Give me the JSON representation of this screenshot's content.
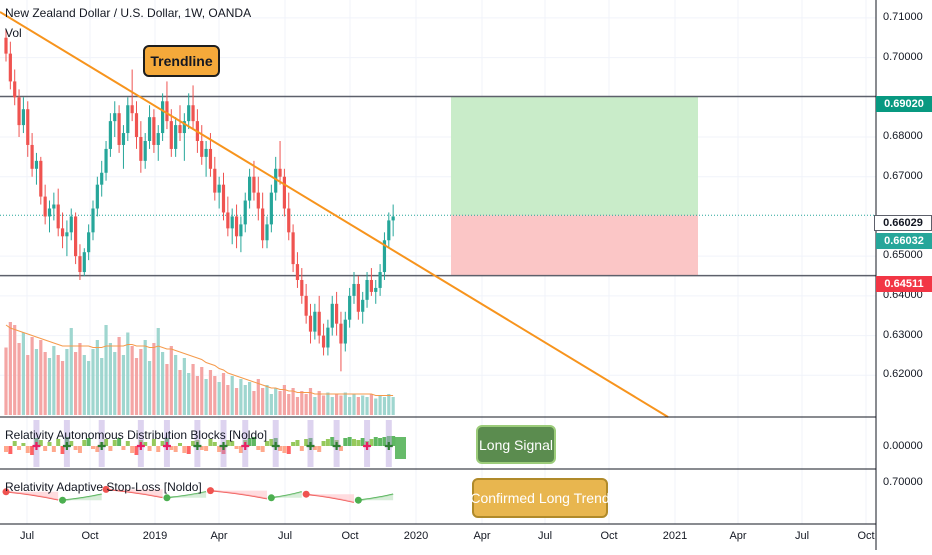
{
  "header": {
    "title": "New Zealand Dollar / U.S. Dollar, 1W, OANDA",
    "volume_label": "Vol"
  },
  "annotations": {
    "trendline_label": "Trendline",
    "long_signal_label": "Long Signal",
    "confirmed_trend_label": "Confirmed Long Trend"
  },
  "indicators": {
    "distribution_blocks": "Relativity Autonomous Distribution Blocks [Noldo]",
    "stop_loss": "Relativity Adaptive Stop-Loss [Noldo]",
    "pane1_tick": "0.00000",
    "pane2_tick": "0.70000"
  },
  "price_axis": {
    "ticks": [
      "0.71000",
      "0.70000",
      "0.68000",
      "0.67000",
      "0.65000",
      "0.64000",
      "0.63000",
      "0.62000"
    ],
    "badges": {
      "target": "0.69020",
      "last": "0.66029",
      "close": "0.66032",
      "stop": "0.64511"
    }
  },
  "time_axis": {
    "ticks": [
      "Jul",
      "Oct",
      "2019",
      "Apr",
      "Jul",
      "Oct",
      "2020",
      "Apr",
      "Jul",
      "Oct",
      "2021",
      "Apr",
      "Jul",
      "Oct"
    ]
  },
  "colors": {
    "up": "#26a69a",
    "down": "#ef5350",
    "trendline": "#f7941d",
    "profit_zone": "#c9ecc9",
    "loss_zone": "#fbc6c6",
    "target_badge": "#089981",
    "stop_badge": "#f23645",
    "long_signal_bg": "#5b8c4f",
    "confirmed_bg": "#e8b64f"
  },
  "chart_data": {
    "type": "candlestick",
    "symbol": "NZDUSD",
    "interval": "1W",
    "ylim": [
      0.6095,
      0.7145
    ],
    "levels": {
      "target": 0.6902,
      "entry": 0.66029,
      "stop": 0.64511
    },
    "trendline": {
      "start": {
        "date": "2018-06",
        "price": 0.71
      },
      "end": {
        "date": "2021-01",
        "price": 0.61
      }
    },
    "candles": [
      [
        0.705,
        0.707,
        0.699,
        0.701
      ],
      [
        0.701,
        0.704,
        0.692,
        0.694
      ],
      [
        0.694,
        0.697,
        0.688,
        0.69
      ],
      [
        0.69,
        0.692,
        0.68,
        0.683
      ],
      [
        0.683,
        0.69,
        0.681,
        0.687
      ],
      [
        0.687,
        0.689,
        0.675,
        0.678
      ],
      [
        0.678,
        0.681,
        0.67,
        0.672
      ],
      [
        0.672,
        0.676,
        0.668,
        0.674
      ],
      [
        0.674,
        0.675,
        0.663,
        0.665
      ],
      [
        0.665,
        0.668,
        0.658,
        0.66
      ],
      [
        0.66,
        0.664,
        0.656,
        0.662
      ],
      [
        0.662,
        0.666,
        0.659,
        0.663
      ],
      [
        0.663,
        0.667,
        0.655,
        0.657
      ],
      [
        0.657,
        0.661,
        0.652,
        0.655
      ],
      [
        0.655,
        0.659,
        0.65,
        0.656
      ],
      [
        0.656,
        0.662,
        0.654,
        0.66
      ],
      [
        0.66,
        0.661,
        0.648,
        0.65
      ],
      [
        0.65,
        0.653,
        0.644,
        0.646
      ],
      [
        0.646,
        0.652,
        0.645,
        0.651
      ],
      [
        0.651,
        0.658,
        0.649,
        0.656
      ],
      [
        0.656,
        0.664,
        0.654,
        0.662
      ],
      [
        0.662,
        0.67,
        0.66,
        0.668
      ],
      [
        0.668,
        0.674,
        0.665,
        0.671
      ],
      [
        0.671,
        0.679,
        0.669,
        0.677
      ],
      [
        0.677,
        0.686,
        0.675,
        0.684
      ],
      [
        0.684,
        0.689,
        0.68,
        0.686
      ],
      [
        0.686,
        0.688,
        0.676,
        0.678
      ],
      [
        0.678,
        0.683,
        0.672,
        0.681
      ],
      [
        0.681,
        0.69,
        0.679,
        0.688
      ],
      [
        0.688,
        0.697,
        0.684,
        0.686
      ],
      [
        0.686,
        0.689,
        0.677,
        0.68
      ],
      [
        0.68,
        0.684,
        0.671,
        0.674
      ],
      [
        0.674,
        0.681,
        0.672,
        0.679
      ],
      [
        0.679,
        0.688,
        0.677,
        0.685
      ],
      [
        0.685,
        0.687,
        0.676,
        0.678
      ],
      [
        0.678,
        0.683,
        0.674,
        0.681
      ],
      [
        0.681,
        0.691,
        0.679,
        0.689
      ],
      [
        0.689,
        0.694,
        0.682,
        0.684
      ],
      [
        0.684,
        0.687,
        0.675,
        0.677
      ],
      [
        0.677,
        0.685,
        0.675,
        0.683
      ],
      [
        0.683,
        0.688,
        0.679,
        0.681
      ],
      [
        0.681,
        0.686,
        0.674,
        0.684
      ],
      [
        0.684,
        0.691,
        0.682,
        0.688
      ],
      [
        0.688,
        0.693,
        0.682,
        0.684
      ],
      [
        0.684,
        0.687,
        0.676,
        0.679
      ],
      [
        0.679,
        0.683,
        0.673,
        0.675
      ],
      [
        0.675,
        0.679,
        0.67,
        0.677
      ],
      [
        0.677,
        0.681,
        0.67,
        0.672
      ],
      [
        0.672,
        0.675,
        0.664,
        0.666
      ],
      [
        0.666,
        0.67,
        0.662,
        0.668
      ],
      [
        0.668,
        0.671,
        0.659,
        0.661
      ],
      [
        0.661,
        0.665,
        0.655,
        0.657
      ],
      [
        0.657,
        0.662,
        0.653,
        0.66
      ],
      [
        0.66,
        0.663,
        0.652,
        0.655
      ],
      [
        0.655,
        0.66,
        0.651,
        0.658
      ],
      [
        0.658,
        0.666,
        0.656,
        0.664
      ],
      [
        0.664,
        0.672,
        0.662,
        0.67
      ],
      [
        0.67,
        0.674,
        0.664,
        0.666
      ],
      [
        0.666,
        0.67,
        0.659,
        0.662
      ],
      [
        0.662,
        0.666,
        0.652,
        0.654
      ],
      [
        0.654,
        0.66,
        0.652,
        0.658
      ],
      [
        0.658,
        0.668,
        0.656,
        0.666
      ],
      [
        0.666,
        0.675,
        0.664,
        0.672
      ],
      [
        0.672,
        0.679,
        0.668,
        0.67
      ],
      [
        0.67,
        0.672,
        0.66,
        0.662
      ],
      [
        0.662,
        0.666,
        0.654,
        0.656
      ],
      [
        0.656,
        0.658,
        0.646,
        0.648
      ],
      [
        0.648,
        0.651,
        0.642,
        0.644
      ],
      [
        0.644,
        0.647,
        0.638,
        0.64
      ],
      [
        0.64,
        0.643,
        0.633,
        0.635
      ],
      [
        0.635,
        0.638,
        0.628,
        0.631
      ],
      [
        0.631,
        0.638,
        0.629,
        0.636
      ],
      [
        0.636,
        0.64,
        0.628,
        0.63
      ],
      [
        0.63,
        0.633,
        0.625,
        0.627
      ],
      [
        0.627,
        0.634,
        0.625,
        0.632
      ],
      [
        0.632,
        0.64,
        0.63,
        0.638
      ],
      [
        0.638,
        0.641,
        0.63,
        0.633
      ],
      [
        0.633,
        0.636,
        0.621,
        0.628
      ],
      [
        0.628,
        0.636,
        0.626,
        0.634
      ],
      [
        0.634,
        0.642,
        0.632,
        0.64
      ],
      [
        0.64,
        0.646,
        0.638,
        0.643
      ],
      [
        0.643,
        0.645,
        0.634,
        0.636
      ],
      [
        0.636,
        0.641,
        0.633,
        0.639
      ],
      [
        0.639,
        0.646,
        0.637,
        0.644
      ],
      [
        0.644,
        0.647,
        0.64,
        0.641
      ],
      [
        0.641,
        0.644,
        0.638,
        0.642
      ],
      [
        0.642,
        0.648,
        0.64,
        0.646
      ],
      [
        0.646,
        0.656,
        0.644,
        0.654
      ],
      [
        0.654,
        0.661,
        0.652,
        0.659
      ],
      [
        0.659,
        0.663,
        0.655,
        0.66
      ]
    ],
    "volume": [
      45,
      62,
      60,
      48,
      55,
      40,
      52,
      44,
      50,
      42,
      38,
      46,
      40,
      36,
      44,
      58,
      42,
      48,
      40,
      36,
      44,
      50,
      38,
      60,
      48,
      42,
      52,
      40,
      55,
      46,
      38,
      44,
      50,
      36,
      48,
      58,
      42,
      34,
      46,
      40,
      30,
      38,
      28,
      34,
      26,
      32,
      24,
      30,
      26,
      22,
      28,
      20,
      26,
      18,
      24,
      20,
      22,
      16,
      24,
      18,
      20,
      14,
      18,
      16,
      20,
      14,
      18,
      12,
      16,
      14,
      18,
      12,
      16,
      13,
      15,
      12,
      14,
      13,
      15,
      12,
      14,
      12,
      13,
      12,
      14,
      11,
      13,
      12,
      14,
      12
    ],
    "volume_ma": [
      60,
      58,
      57,
      56,
      55,
      54,
      53,
      52,
      51,
      50,
      49,
      48,
      47,
      46,
      46,
      46,
      46,
      46,
      46,
      46,
      45,
      45,
      45,
      46,
      46,
      46,
      46,
      46,
      47,
      47,
      46,
      46,
      46,
      45,
      45,
      46,
      45,
      44,
      44,
      43,
      42,
      41,
      40,
      39,
      38,
      37,
      35,
      34,
      33,
      31,
      30,
      28,
      27,
      26,
      25,
      24,
      23,
      22,
      21,
      20,
      19,
      18,
      18,
      17,
      17,
      16,
      16,
      15,
      15,
      15,
      15,
      14,
      14,
      14,
      14,
      14,
      14,
      14,
      14,
      14,
      14,
      14,
      14,
      14,
      14,
      13,
      13,
      13,
      13,
      13
    ],
    "distribution_blocks": [
      -0.6,
      -0.8,
      0.5,
      -0.4,
      0.3,
      -0.7,
      -0.9,
      0.8,
      0.6,
      -0.5,
      0.4,
      -0.6,
      0.7,
      -0.8,
      0.9,
      0.5,
      -0.4,
      -0.7,
      0.6,
      0.8,
      -0.3,
      -0.6,
      0.4,
      0.7,
      -0.5,
      0.6,
      0.8,
      -0.4,
      0.5,
      -0.7,
      -0.9,
      0.6,
      0.4,
      -0.5,
      0.7,
      -0.6,
      0.5,
      0.8,
      -0.4,
      -0.6,
      0.3,
      -0.7,
      -0.8,
      0.5,
      0.6,
      -0.4,
      -0.5,
      0.7,
      0.4,
      -0.6,
      -0.8,
      0.6,
      0.5,
      -0.3,
      -0.7,
      0.6,
      0.8,
      0.9,
      -0.4,
      -0.6,
      0.5,
      0.7,
      0.8,
      -0.5,
      -0.7,
      -0.8,
      0.4,
      0.6,
      -0.5,
      0.7,
      0.8,
      -0.4,
      -0.6,
      0.5,
      0.7,
      0.9,
      0.6,
      -0.5,
      0.8,
      0.9,
      0.7,
      0.6,
      0.8,
      0.5,
      0.7,
      0.9,
      0.8,
      0.9,
      1.0,
      1.0
    ],
    "block_markers": [
      7,
      14,
      22,
      31,
      37,
      44,
      50,
      55,
      62,
      70,
      76,
      83,
      88
    ],
    "stop_loss_segments": [
      {
        "from": 0,
        "to": 12,
        "value": 0.701,
        "trend": "down"
      },
      {
        "from": 13,
        "to": 22,
        "value": 0.694,
        "trend": "up"
      },
      {
        "from": 23,
        "to": 36,
        "value": 0.703,
        "trend": "down"
      },
      {
        "from": 37,
        "to": 46,
        "value": 0.696,
        "trend": "up"
      },
      {
        "from": 47,
        "to": 60,
        "value": 0.702,
        "trend": "down"
      },
      {
        "from": 61,
        "to": 68,
        "value": 0.696,
        "trend": "up"
      },
      {
        "from": 69,
        "to": 80,
        "value": 0.699,
        "trend": "down"
      },
      {
        "from": 81,
        "to": 89,
        "value": 0.694,
        "trend": "up"
      }
    ]
  }
}
